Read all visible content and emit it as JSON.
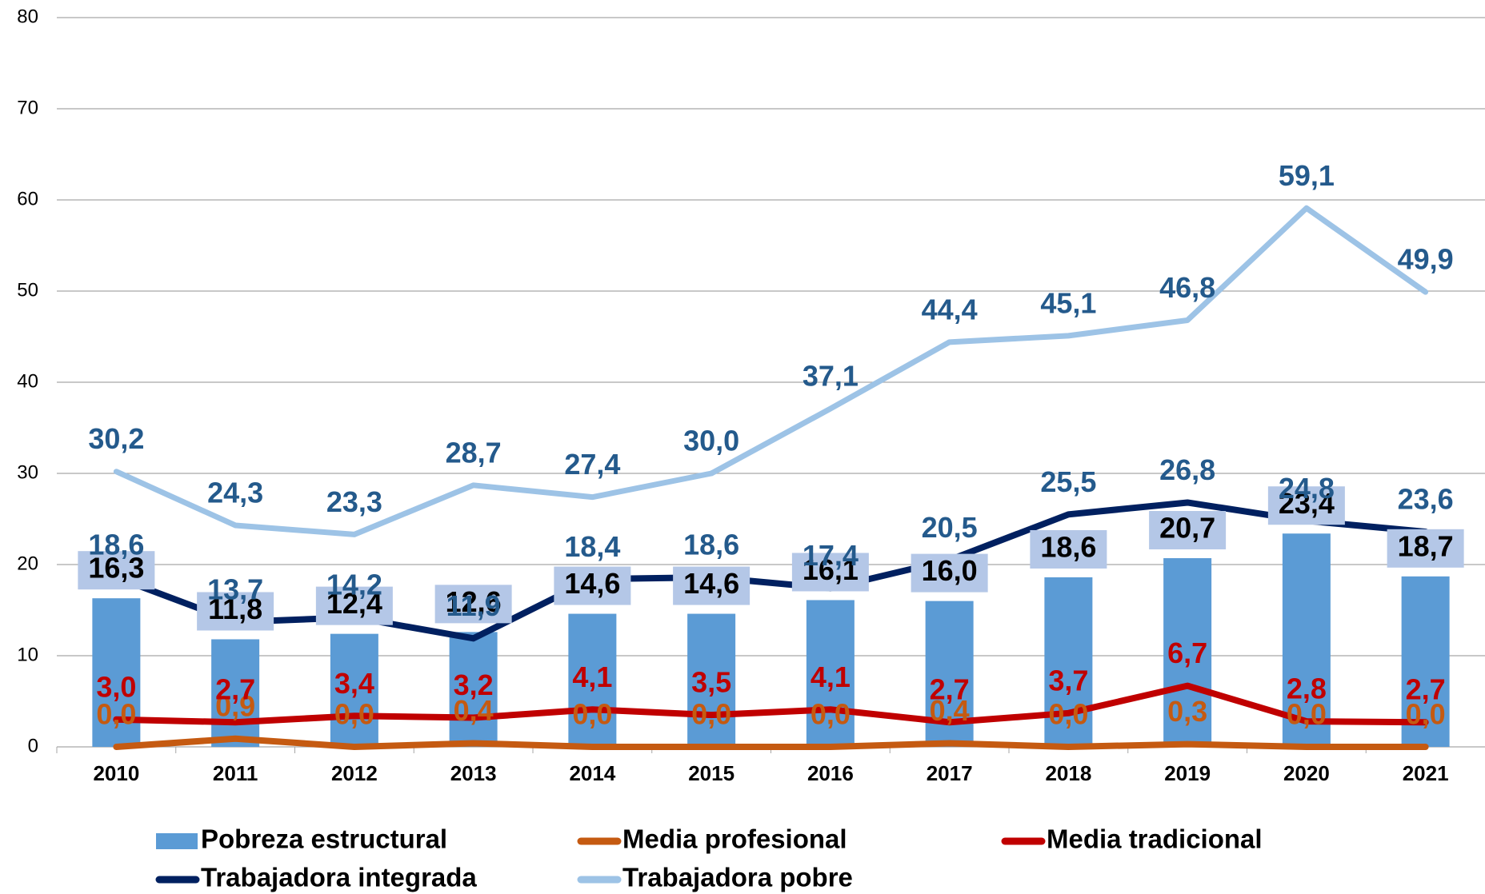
{
  "chart_data": {
    "type": "bar",
    "categories": [
      "2010",
      "2011",
      "2012",
      "2013",
      "2014",
      "2015",
      "2016",
      "2017",
      "2018",
      "2019",
      "2020",
      "2021"
    ],
    "ylim": [
      0,
      80
    ],
    "yticks": [
      0,
      10,
      20,
      30,
      40,
      50,
      60,
      70,
      80
    ],
    "grid": true,
    "legend": "bottom",
    "series": [
      {
        "name": "Pobreza estructural",
        "type": "bar",
        "color": "#5b9bd5",
        "values": [
          16.3,
          11.8,
          12.4,
          12.6,
          14.6,
          14.6,
          16.1,
          16.0,
          18.6,
          20.7,
          23.4,
          18.7
        ],
        "value_labels": [
          "16,3",
          "11,8",
          "12,4",
          "12,6",
          "14,6",
          "14,6",
          "16,1",
          "16,0",
          "18,6",
          "20,7",
          "23,4",
          "18,7"
        ]
      },
      {
        "name": "Media profesional",
        "type": "line",
        "color": "#c55a11",
        "values": [
          0.0,
          0.9,
          0.0,
          0.4,
          0.0,
          0.0,
          0.0,
          0.4,
          0.0,
          0.3,
          0.0,
          0.0
        ],
        "value_labels": [
          "0,0",
          "0,9",
          "0,0",
          "0,4",
          "0,0",
          "0,0",
          "0,0",
          "0,4",
          "0,0",
          "0,3",
          "0,0",
          "0,0"
        ]
      },
      {
        "name": "Media tradicional",
        "type": "line",
        "color": "#c00000",
        "values": [
          3.0,
          2.7,
          3.4,
          3.2,
          4.1,
          3.5,
          4.1,
          2.7,
          3.7,
          6.7,
          2.8,
          2.7
        ],
        "value_labels": [
          "3,0",
          "2,7",
          "3,4",
          "3,2",
          "4,1",
          "3,5",
          "4,1",
          "2,7",
          "3,7",
          "6,7",
          "2,8",
          "2,7"
        ]
      },
      {
        "name": "Trabajadora integrada",
        "type": "line",
        "color": "#002060",
        "values": [
          18.6,
          13.7,
          14.2,
          11.9,
          18.4,
          18.6,
          17.4,
          20.5,
          25.5,
          26.8,
          24.8,
          23.6
        ],
        "value_labels": [
          "18,6",
          "13,7",
          "14,2",
          "11,9",
          "18,4",
          "18,6",
          "17,4",
          "20,5",
          "25,5",
          "26,8",
          "24,8",
          "23,6"
        ]
      },
      {
        "name": "Trabajadora pobre",
        "type": "line",
        "color": "#9dc3e6",
        "values": [
          30.2,
          24.3,
          23.3,
          28.7,
          27.4,
          30.0,
          37.1,
          44.4,
          45.1,
          46.8,
          59.1,
          49.9
        ],
        "value_labels": [
          "30,2",
          "24,3",
          "23,3",
          "28,7",
          "27,4",
          "30,0",
          "37,1",
          "44,4",
          "45,1",
          "46,8",
          "59,1",
          "49,9"
        ]
      }
    ]
  }
}
